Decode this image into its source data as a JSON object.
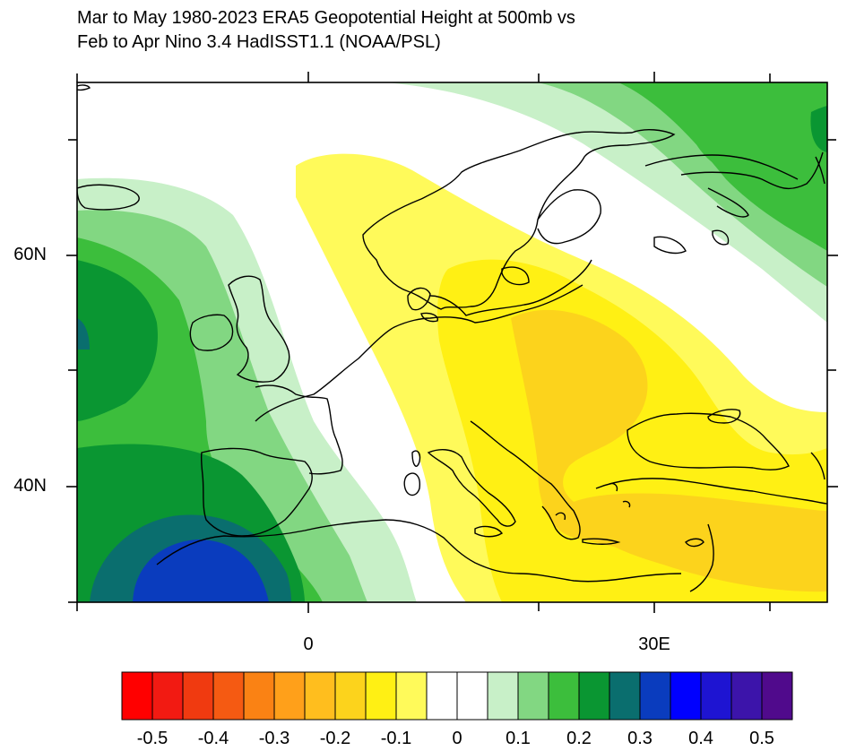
{
  "title": {
    "line1": "Mar to May 1980-2023 ERA5 Geopotential Height at 500mb vs",
    "line2": "Feb to Apr Nino 3.4 HadISST1.1 (NOAA/PSL)"
  },
  "axes": {
    "lat_labels": [
      "60N",
      "40N"
    ],
    "lon_labels": [
      "0",
      "30E"
    ]
  },
  "colorbar": {
    "colors": [
      "#ff0000",
      "#f21a12",
      "#f03a10",
      "#f55a12",
      "#fa8214",
      "#ffa01a",
      "#ffbe1e",
      "#fcd31c",
      "#fff014",
      "#fffa5a",
      "#ffffff",
      "#ffffff",
      "#c8f0c8",
      "#82d782",
      "#3cbe3c",
      "#0a9632",
      "#0a6e6e",
      "#0a3cbe",
      "#0000ff",
      "#1e14d2",
      "#3c14aa",
      "#500a8c"
    ],
    "labels": [
      "-0.5",
      "-0.4",
      "-0.3",
      "-0.2",
      "-0.1",
      "0",
      "0.1",
      "0.2",
      "0.3",
      "0.4",
      "0.5"
    ]
  },
  "colors": {
    "neg_01": "#fffa5a",
    "neg_02": "#fff014",
    "neg_03": "#fcd31c",
    "pos_01": "#c8f0c8",
    "pos_02": "#82d782",
    "pos_03": "#3cbe3c",
    "pos_04": "#0a9632",
    "pos_05": "#0a6e6e",
    "pos_06": "#0a3cbe"
  }
}
